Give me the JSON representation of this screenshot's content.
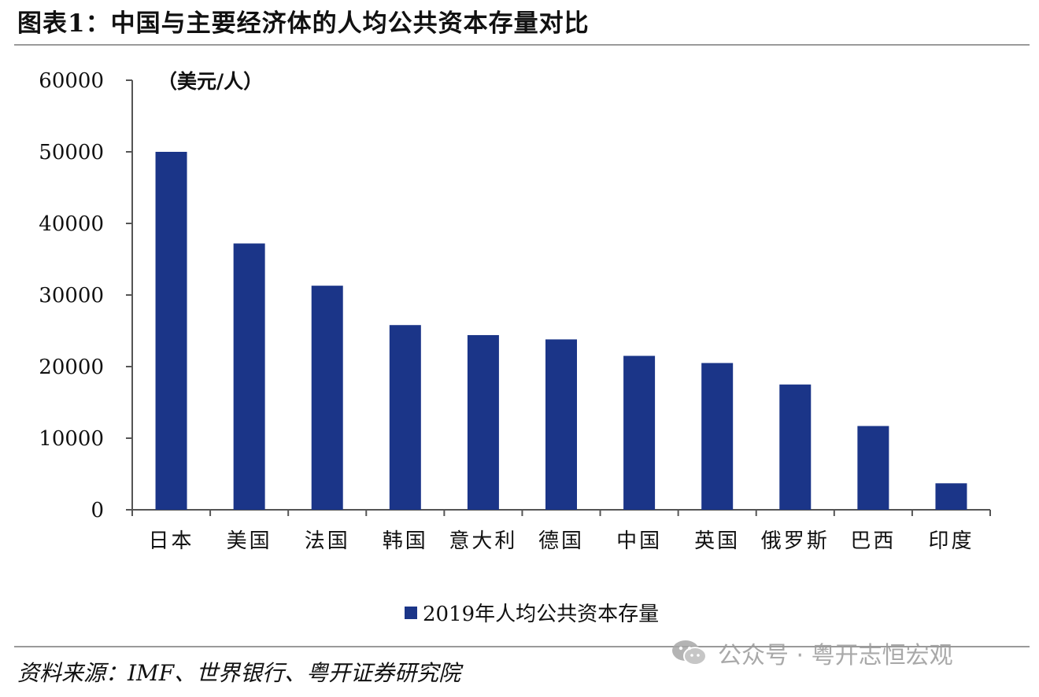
{
  "figure": {
    "title": "图表1：中国与主要经济体的人均公共资本存量对比",
    "source": "资料来源：IMF、世界银行、粤开证券研究院",
    "watermark": "公众号 · 粤开志恒宏观"
  },
  "colors": {
    "bar": "#1b3588",
    "axis": "#555555",
    "text": "#111111"
  },
  "chart_data": {
    "type": "bar",
    "title": "",
    "xlabel": "",
    "ylabel": "（美元/人）",
    "ylim": [
      0,
      60000
    ],
    "yticks": [
      0,
      10000,
      20000,
      30000,
      40000,
      50000,
      60000
    ],
    "categories": [
      "日本",
      "美国",
      "法国",
      "韩国",
      "意大利",
      "德国",
      "中国",
      "英国",
      "俄罗斯",
      "巴西",
      "印度"
    ],
    "series": [
      {
        "name": "2019年人均公共资本存量",
        "values": [
          50000,
          37200,
          31300,
          25800,
          24400,
          23800,
          21500,
          20500,
          17500,
          11700,
          3700
        ]
      }
    ],
    "legend_position": "bottom-center",
    "grid": false
  }
}
